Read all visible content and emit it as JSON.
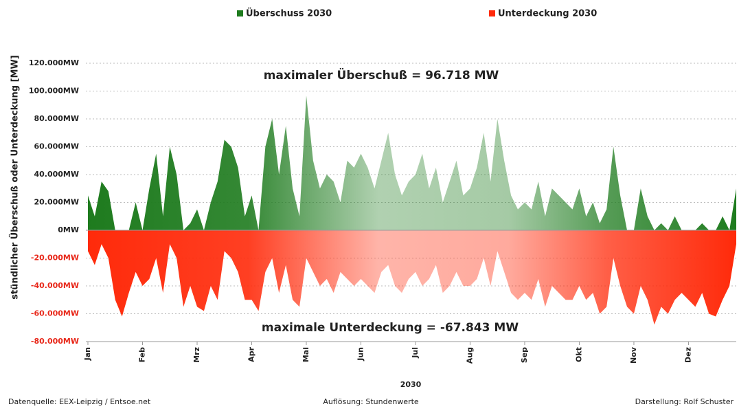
{
  "chart_data": {
    "type": "area",
    "legend": "top",
    "annotations": [
      "maximaler Überschuß = 96.718 MW",
      "maximale Unterdeckung = -67.843 MW"
    ],
    "xlabel": "2030",
    "ylabel": "stündlicher Überschuß oder Unterdeckung [MW]",
    "footer": [
      "Datenquelle: EEX-Leipzig  /  Entsoe.net",
      "Auflösung: Stundenwerte",
      "Darstellung: Rolf Schuster"
    ],
    "grid": true,
    "ylim": [
      -80000,
      120000
    ],
    "yticks": [
      {
        "value": 120000,
        "label": "120.000MW"
      },
      {
        "value": 100000,
        "label": "100.000MW"
      },
      {
        "value": 80000,
        "label": "80.000MW"
      },
      {
        "value": 60000,
        "label": "60.000MW"
      },
      {
        "value": 40000,
        "label": "40.000MW"
      },
      {
        "value": 20000,
        "label": "20.000MW"
      },
      {
        "value": 0,
        "label": "0MW"
      },
      {
        "value": -20000,
        "label": "-20.000MW"
      },
      {
        "value": -40000,
        "label": "-40.000MW"
      },
      {
        "value": -60000,
        "label": "-60.000MW"
      },
      {
        "value": -80000,
        "label": "-80.000MW"
      }
    ],
    "categories": [
      "Jan",
      null,
      null,
      null,
      null,
      null,
      null,
      null,
      "Feb",
      null,
      null,
      null,
      null,
      null,
      null,
      null,
      "Mrz",
      null,
      null,
      null,
      null,
      null,
      null,
      null,
      "Apr",
      null,
      null,
      null,
      null,
      null,
      null,
      null,
      "Mai",
      null,
      null,
      null,
      null,
      null,
      null,
      null,
      "Jun",
      null,
      null,
      null,
      null,
      null,
      null,
      null,
      "Jul",
      null,
      null,
      null,
      null,
      null,
      null,
      null,
      "Aug",
      null,
      null,
      null,
      null,
      null,
      null,
      null,
      "Sep",
      null,
      null,
      null,
      null,
      null,
      null,
      null,
      "Okt",
      null,
      null,
      null,
      null,
      null,
      null,
      null,
      "Nov",
      null,
      null,
      null,
      null,
      null,
      null,
      null,
      "Dez",
      null,
      null,
      null,
      null,
      null,
      null,
      null
    ],
    "series": [
      {
        "name": "Überschuss 2030",
        "color": "#1e7b1e",
        "values": [
          25000,
          10000,
          35000,
          28000,
          0,
          0,
          0,
          20000,
          0,
          30000,
          55000,
          10000,
          60000,
          40000,
          0,
          5000,
          15000,
          0,
          20000,
          35000,
          65000,
          60000,
          45000,
          10000,
          25000,
          0,
          60000,
          80000,
          40000,
          75000,
          30000,
          10000,
          96718,
          50000,
          30000,
          40000,
          35000,
          20000,
          50000,
          45000,
          55000,
          45000,
          30000,
          50000,
          70000,
          40000,
          25000,
          35000,
          40000,
          55000,
          30000,
          45000,
          20000,
          35000,
          50000,
          25000,
          30000,
          45000,
          70000,
          35000,
          80000,
          50000,
          25000,
          15000,
          20000,
          15000,
          35000,
          10000,
          30000,
          25000,
          20000,
          15000,
          30000,
          10000,
          20000,
          5000,
          15000,
          60000,
          25000,
          0,
          0,
          30000,
          10000,
          0,
          5000,
          0,
          10000,
          0,
          0,
          0,
          5000,
          0,
          0,
          10000,
          0,
          30000
        ]
      },
      {
        "name": "Unterdeckung 2030",
        "color": "#ff2a0a",
        "values": [
          -15000,
          -25000,
          -10000,
          -20000,
          -50000,
          -62000,
          -45000,
          -30000,
          -40000,
          -35000,
          -20000,
          -45000,
          -10000,
          -20000,
          -55000,
          -40000,
          -55000,
          -58000,
          -40000,
          -50000,
          -15000,
          -20000,
          -30000,
          -50000,
          -50000,
          -58000,
          -30000,
          -20000,
          -45000,
          -25000,
          -50000,
          -55000,
          -20000,
          -30000,
          -40000,
          -35000,
          -45000,
          -30000,
          -35000,
          -40000,
          -35000,
          -40000,
          -45000,
          -30000,
          -25000,
          -40000,
          -45000,
          -35000,
          -30000,
          -40000,
          -35000,
          -25000,
          -45000,
          -40000,
          -30000,
          -40000,
          -40000,
          -35000,
          -20000,
          -40000,
          -15000,
          -30000,
          -45000,
          -50000,
          -45000,
          -50000,
          -35000,
          -55000,
          -40000,
          -45000,
          -50000,
          -50000,
          -40000,
          -50000,
          -45000,
          -60000,
          -55000,
          -20000,
          -40000,
          -55000,
          -60000,
          -40000,
          -50000,
          -67843,
          -55000,
          -60000,
          -50000,
          -45000,
          -50000,
          -55000,
          -45000,
          -60000,
          -62000,
          -50000,
          -40000,
          -10000
        ]
      }
    ]
  }
}
